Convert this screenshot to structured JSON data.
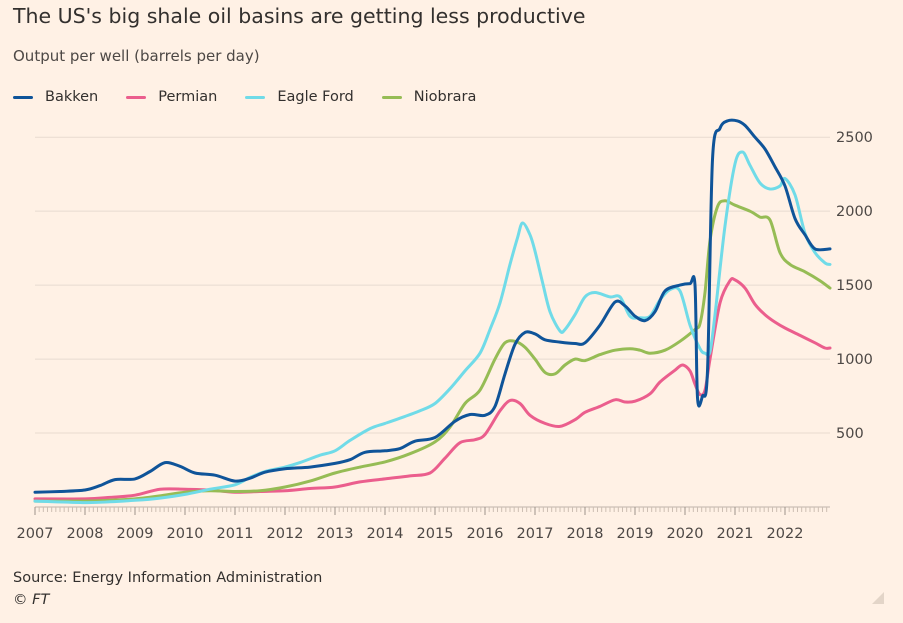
{
  "title": "The US's big shale oil basins are getting less productive",
  "subtitle": "Output per well (barrels per day)",
  "source": "Source: Energy Information Administration",
  "copyright": "© FT",
  "colors": {
    "background": "#fff1e5",
    "bakken": "#0f5499",
    "permian": "#eb5e8d",
    "eagle_ford": "#70dbe8",
    "niobrara": "#96bc55",
    "gridline": "#e8dbd0"
  },
  "chart_data": {
    "type": "line",
    "title": "The US's big shale oil basins are getting less productive",
    "ylabel": "Output per well (barrels per day)",
    "xlabel": "",
    "xlim": [
      2007.0,
      2022.9
    ],
    "ylim": [
      0,
      2650
    ],
    "yticks": [
      500,
      1000,
      1500,
      2000,
      2500
    ],
    "xticks": [
      2007,
      2008,
      2009,
      2010,
      2011,
      2012,
      2013,
      2014,
      2015,
      2016,
      2017,
      2018,
      2019,
      2020,
      2021,
      2022
    ],
    "grid": true,
    "legend_position": "top-left",
    "series": [
      {
        "name": "Bakken",
        "color": "#0f5499",
        "points": [
          [
            2007.0,
            100
          ],
          [
            2007.5,
            105
          ],
          [
            2008.0,
            115
          ],
          [
            2008.3,
            145
          ],
          [
            2008.6,
            185
          ],
          [
            2009.0,
            190
          ],
          [
            2009.3,
            240
          ],
          [
            2009.6,
            300
          ],
          [
            2009.9,
            275
          ],
          [
            2010.2,
            230
          ],
          [
            2010.6,
            215
          ],
          [
            2011.0,
            175
          ],
          [
            2011.3,
            195
          ],
          [
            2011.6,
            235
          ],
          [
            2012.0,
            258
          ],
          [
            2012.5,
            270
          ],
          [
            2013.0,
            295
          ],
          [
            2013.3,
            320
          ],
          [
            2013.6,
            370
          ],
          [
            2014.0,
            380
          ],
          [
            2014.3,
            395
          ],
          [
            2014.6,
            445
          ],
          [
            2015.0,
            470
          ],
          [
            2015.4,
            580
          ],
          [
            2015.7,
            625
          ],
          [
            2016.0,
            620
          ],
          [
            2016.2,
            680
          ],
          [
            2016.4,
            900
          ],
          [
            2016.6,
            1100
          ],
          [
            2016.8,
            1180
          ],
          [
            2017.0,
            1170
          ],
          [
            2017.2,
            1130
          ],
          [
            2017.5,
            1115
          ],
          [
            2017.8,
            1105
          ],
          [
            2018.0,
            1110
          ],
          [
            2018.3,
            1230
          ],
          [
            2018.6,
            1385
          ],
          [
            2018.8,
            1360
          ],
          [
            2019.0,
            1290
          ],
          [
            2019.2,
            1260
          ],
          [
            2019.4,
            1320
          ],
          [
            2019.6,
            1460
          ],
          [
            2019.9,
            1500
          ],
          [
            2020.1,
            1510
          ],
          [
            2020.2,
            1500
          ],
          [
            2020.25,
            740
          ],
          [
            2020.35,
            750
          ],
          [
            2020.45,
            920
          ],
          [
            2020.55,
            2350
          ],
          [
            2020.7,
            2560
          ],
          [
            2020.85,
            2610
          ],
          [
            2021.05,
            2610
          ],
          [
            2021.2,
            2580
          ],
          [
            2021.4,
            2500
          ],
          [
            2021.6,
            2420
          ],
          [
            2021.8,
            2300
          ],
          [
            2022.0,
            2170
          ],
          [
            2022.2,
            1950
          ],
          [
            2022.4,
            1840
          ],
          [
            2022.6,
            1745
          ],
          [
            2022.9,
            1745
          ]
        ]
      },
      {
        "name": "Permian",
        "color": "#eb5e8d",
        "points": [
          [
            2007.0,
            55
          ],
          [
            2008.0,
            55
          ],
          [
            2008.5,
            65
          ],
          [
            2009.0,
            80
          ],
          [
            2009.5,
            120
          ],
          [
            2010.0,
            120
          ],
          [
            2010.5,
            115
          ],
          [
            2011.0,
            100
          ],
          [
            2011.5,
            105
          ],
          [
            2012.0,
            110
          ],
          [
            2012.5,
            125
          ],
          [
            2013.0,
            135
          ],
          [
            2013.5,
            170
          ],
          [
            2014.0,
            190
          ],
          [
            2014.5,
            210
          ],
          [
            2014.9,
            230
          ],
          [
            2015.2,
            330
          ],
          [
            2015.5,
            435
          ],
          [
            2015.8,
            455
          ],
          [
            2016.0,
            490
          ],
          [
            2016.3,
            650
          ],
          [
            2016.5,
            720
          ],
          [
            2016.7,
            700
          ],
          [
            2016.9,
            620
          ],
          [
            2017.2,
            565
          ],
          [
            2017.5,
            545
          ],
          [
            2017.8,
            590
          ],
          [
            2018.0,
            640
          ],
          [
            2018.3,
            680
          ],
          [
            2018.6,
            725
          ],
          [
            2018.8,
            710
          ],
          [
            2019.0,
            715
          ],
          [
            2019.3,
            765
          ],
          [
            2019.5,
            845
          ],
          [
            2019.8,
            925
          ],
          [
            2019.95,
            960
          ],
          [
            2020.1,
            920
          ],
          [
            2020.2,
            830
          ],
          [
            2020.3,
            760
          ],
          [
            2020.4,
            790
          ],
          [
            2020.5,
            1000
          ],
          [
            2020.7,
            1380
          ],
          [
            2020.9,
            1530
          ],
          [
            2021.0,
            1535
          ],
          [
            2021.2,
            1480
          ],
          [
            2021.4,
            1370
          ],
          [
            2021.6,
            1300
          ],
          [
            2021.8,
            1250
          ],
          [
            2022.0,
            1210
          ],
          [
            2022.3,
            1160
          ],
          [
            2022.6,
            1110
          ],
          [
            2022.8,
            1075
          ],
          [
            2022.9,
            1075
          ]
        ]
      },
      {
        "name": "Eagle Ford",
        "color": "#70dbe8",
        "points": [
          [
            2007.0,
            40
          ],
          [
            2008.0,
            30
          ],
          [
            2008.5,
            35
          ],
          [
            2009.0,
            45
          ],
          [
            2009.5,
            60
          ],
          [
            2010.0,
            85
          ],
          [
            2010.5,
            120
          ],
          [
            2011.0,
            150
          ],
          [
            2011.3,
            200
          ],
          [
            2011.6,
            240
          ],
          [
            2012.0,
            270
          ],
          [
            2012.3,
            300
          ],
          [
            2012.7,
            350
          ],
          [
            2013.0,
            380
          ],
          [
            2013.3,
            450
          ],
          [
            2013.7,
            530
          ],
          [
            2014.0,
            565
          ],
          [
            2014.3,
            600
          ],
          [
            2014.7,
            650
          ],
          [
            2015.0,
            700
          ],
          [
            2015.3,
            800
          ],
          [
            2015.6,
            920
          ],
          [
            2015.9,
            1040
          ],
          [
            2016.1,
            1200
          ],
          [
            2016.3,
            1380
          ],
          [
            2016.5,
            1640
          ],
          [
            2016.65,
            1820
          ],
          [
            2016.75,
            1920
          ],
          [
            2016.9,
            1840
          ],
          [
            2017.0,
            1730
          ],
          [
            2017.15,
            1520
          ],
          [
            2017.3,
            1320
          ],
          [
            2017.5,
            1190
          ],
          [
            2017.6,
            1200
          ],
          [
            2017.8,
            1300
          ],
          [
            2018.0,
            1420
          ],
          [
            2018.2,
            1450
          ],
          [
            2018.5,
            1420
          ],
          [
            2018.7,
            1420
          ],
          [
            2018.9,
            1290
          ],
          [
            2019.1,
            1280
          ],
          [
            2019.3,
            1290
          ],
          [
            2019.5,
            1400
          ],
          [
            2019.7,
            1470
          ],
          [
            2019.9,
            1460
          ],
          [
            2020.1,
            1230
          ],
          [
            2020.3,
            1070
          ],
          [
            2020.4,
            1040
          ],
          [
            2020.5,
            1050
          ],
          [
            2020.6,
            1300
          ],
          [
            2020.8,
            1900
          ],
          [
            2021.0,
            2320
          ],
          [
            2021.15,
            2400
          ],
          [
            2021.3,
            2310
          ],
          [
            2021.5,
            2190
          ],
          [
            2021.7,
            2150
          ],
          [
            2021.9,
            2170
          ],
          [
            2022.0,
            2220
          ],
          [
            2022.2,
            2110
          ],
          [
            2022.4,
            1850
          ],
          [
            2022.6,
            1720
          ],
          [
            2022.8,
            1650
          ],
          [
            2022.9,
            1640
          ]
        ]
      },
      {
        "name": "Niobrara",
        "color": "#96bc55",
        "points": [
          [
            2007.0,
            40
          ],
          [
            2008.0,
            40
          ],
          [
            2008.5,
            45
          ],
          [
            2009.0,
            55
          ],
          [
            2009.5,
            75
          ],
          [
            2010.0,
            100
          ],
          [
            2010.5,
            110
          ],
          [
            2011.0,
            105
          ],
          [
            2011.5,
            110
          ],
          [
            2012.0,
            135
          ],
          [
            2012.5,
            175
          ],
          [
            2013.0,
            230
          ],
          [
            2013.5,
            270
          ],
          [
            2014.0,
            305
          ],
          [
            2014.5,
            360
          ],
          [
            2015.0,
            440
          ],
          [
            2015.3,
            540
          ],
          [
            2015.6,
            700
          ],
          [
            2015.9,
            790
          ],
          [
            2016.2,
            1000
          ],
          [
            2016.4,
            1110
          ],
          [
            2016.6,
            1120
          ],
          [
            2016.8,
            1080
          ],
          [
            2017.0,
            1000
          ],
          [
            2017.2,
            910
          ],
          [
            2017.4,
            900
          ],
          [
            2017.6,
            960
          ],
          [
            2017.8,
            1000
          ],
          [
            2018.0,
            990
          ],
          [
            2018.3,
            1030
          ],
          [
            2018.6,
            1060
          ],
          [
            2018.9,
            1070
          ],
          [
            2019.1,
            1060
          ],
          [
            2019.3,
            1040
          ],
          [
            2019.6,
            1060
          ],
          [
            2019.9,
            1120
          ],
          [
            2020.2,
            1200
          ],
          [
            2020.3,
            1240
          ],
          [
            2020.4,
            1450
          ],
          [
            2020.5,
            1800
          ],
          [
            2020.65,
            2030
          ],
          [
            2020.8,
            2070
          ],
          [
            2021.0,
            2040
          ],
          [
            2021.3,
            2000
          ],
          [
            2021.5,
            1960
          ],
          [
            2021.7,
            1940
          ],
          [
            2021.9,
            1720
          ],
          [
            2022.1,
            1640
          ],
          [
            2022.4,
            1590
          ],
          [
            2022.7,
            1530
          ],
          [
            2022.9,
            1480
          ]
        ]
      }
    ]
  }
}
